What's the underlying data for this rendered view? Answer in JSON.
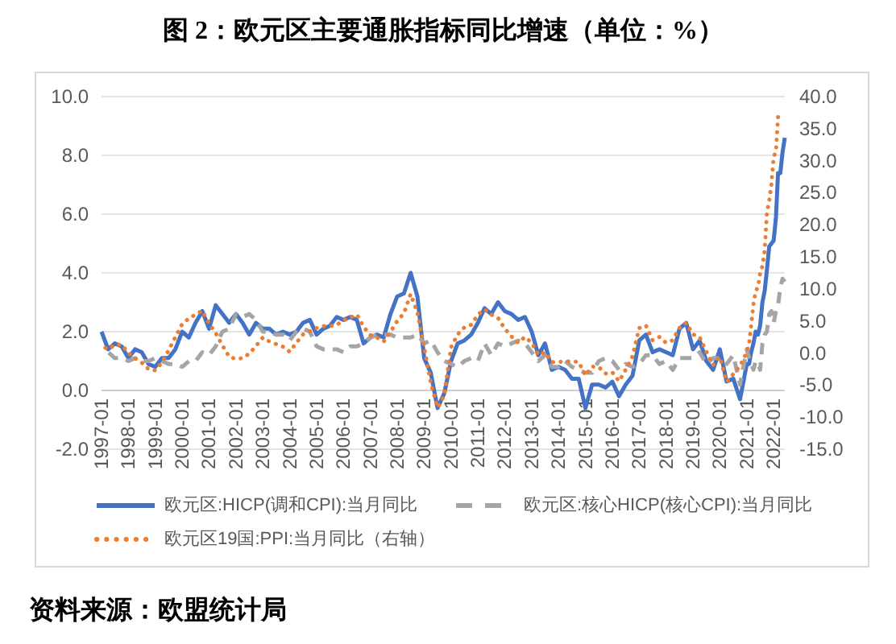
{
  "chart_data": {
    "type": "line",
    "title": "图 2：欧元区主要通胀指标同比增速（单位：%）",
    "annotations": [
      "资料来源：欧盟统计局"
    ],
    "xlim": [
      "1997-01",
      "2022-06"
    ],
    "xticks": [
      "1997-01",
      "1998-01",
      "1999-01",
      "2000-01",
      "2001-01",
      "2002-01",
      "2003-01",
      "2004-01",
      "2005-01",
      "2006-01",
      "2007-01",
      "2008-01",
      "2009-01",
      "2010-01",
      "2011-01",
      "2012-01",
      "2013-01",
      "2014-01",
      "2015-01",
      "2016-01",
      "2017-01",
      "2018-01",
      "2019-01",
      "2020-01",
      "2021-01",
      "2022-01"
    ],
    "ylim": [
      -2,
      10
    ],
    "yticks": [
      {
        "value": -2,
        "label": "-2.0"
      },
      {
        "value": 0,
        "label": "0.0"
      },
      {
        "value": 2,
        "label": "2.0"
      },
      {
        "value": 4,
        "label": "4.0"
      },
      {
        "value": 6,
        "label": "6.0"
      },
      {
        "value": 8,
        "label": "8.0"
      },
      {
        "value": 10,
        "label": "10.0"
      }
    ],
    "y2lim": [
      -15,
      40
    ],
    "y2ticks": [
      {
        "value": -15,
        "label": "-15.0"
      },
      {
        "value": -10,
        "label": "-10.0"
      },
      {
        "value": -5,
        "label": "-5.0"
      },
      {
        "value": 0,
        "label": "0.0"
      },
      {
        "value": 5,
        "label": "5.0"
      },
      {
        "value": 10,
        "label": "10.0"
      },
      {
        "value": 15,
        "label": "15.0"
      },
      {
        "value": 20,
        "label": "20.0"
      },
      {
        "value": 25,
        "label": "25.0"
      },
      {
        "value": 30,
        "label": "30.0"
      },
      {
        "value": 35,
        "label": "35.0"
      },
      {
        "value": 40,
        "label": "40.0"
      }
    ],
    "grid": "y",
    "legend": "bottom",
    "series": [
      {
        "name": "欧元区:HICP(调和CPI):当月同比",
        "color": "#4472c4",
        "line_style": "solid",
        "x": [
          "1997-01",
          "1997-04",
          "1997-07",
          "1997-10",
          "1998-01",
          "1998-04",
          "1998-07",
          "1998-10",
          "1999-01",
          "1999-04",
          "1999-07",
          "1999-10",
          "2000-01",
          "2000-04",
          "2000-07",
          "2000-10",
          "2001-01",
          "2001-04",
          "2001-07",
          "2001-10",
          "2002-01",
          "2002-04",
          "2002-07",
          "2002-10",
          "2003-01",
          "2003-04",
          "2003-07",
          "2003-10",
          "2004-01",
          "2004-04",
          "2004-07",
          "2004-10",
          "2005-01",
          "2005-04",
          "2005-07",
          "2005-10",
          "2006-01",
          "2006-04",
          "2006-07",
          "2006-10",
          "2007-01",
          "2007-04",
          "2007-07",
          "2007-10",
          "2008-01",
          "2008-04",
          "2008-07",
          "2008-10",
          "2009-01",
          "2009-04",
          "2009-07",
          "2009-10",
          "2010-01",
          "2010-04",
          "2010-07",
          "2010-10",
          "2011-01",
          "2011-04",
          "2011-07",
          "2011-10",
          "2012-01",
          "2012-04",
          "2012-07",
          "2012-10",
          "2013-01",
          "2013-04",
          "2013-07",
          "2013-10",
          "2014-01",
          "2014-04",
          "2014-07",
          "2014-10",
          "2015-01",
          "2015-04",
          "2015-07",
          "2015-10",
          "2016-01",
          "2016-04",
          "2016-07",
          "2016-10",
          "2017-01",
          "2017-04",
          "2017-07",
          "2017-10",
          "2018-01",
          "2018-04",
          "2018-07",
          "2018-10",
          "2019-01",
          "2019-04",
          "2019-07",
          "2019-10",
          "2020-01",
          "2020-04",
          "2020-07",
          "2020-10",
          "2021-01",
          "2021-02",
          "2021-03",
          "2021-04",
          "2021-05",
          "2021-06",
          "2021-07",
          "2021-08",
          "2021-09",
          "2021-10",
          "2021-11",
          "2021-12",
          "2022-01",
          "2022-02",
          "2022-03",
          "2022-04",
          "2022-05",
          "2022-06"
        ],
        "values": [
          2.0,
          1.4,
          1.6,
          1.5,
          1.1,
          1.4,
          1.3,
          0.9,
          0.8,
          1.1,
          1.1,
          1.4,
          2.0,
          1.8,
          2.3,
          2.7,
          2.1,
          2.9,
          2.6,
          2.3,
          2.6,
          2.3,
          1.9,
          2.3,
          2.1,
          2.1,
          1.9,
          2.0,
          1.9,
          2.0,
          2.3,
          2.4,
          1.9,
          2.1,
          2.2,
          2.5,
          2.4,
          2.5,
          2.4,
          1.6,
          1.8,
          1.9,
          1.8,
          2.6,
          3.2,
          3.3,
          4.0,
          3.2,
          1.1,
          0.6,
          -0.6,
          -0.1,
          1.0,
          1.6,
          1.7,
          1.9,
          2.3,
          2.8,
          2.6,
          3.0,
          2.7,
          2.6,
          2.4,
          2.5,
          2.0,
          1.2,
          1.6,
          0.7,
          0.8,
          0.7,
          0.4,
          0.4,
          -0.6,
          0.2,
          0.2,
          0.1,
          0.3,
          -0.2,
          0.2,
          0.5,
          1.7,
          1.9,
          1.3,
          1.4,
          1.3,
          1.2,
          2.1,
          2.3,
          1.4,
          1.7,
          1.0,
          0.7,
          1.4,
          0.3,
          0.4,
          -0.3,
          0.9,
          0.9,
          1.3,
          1.6,
          2.0,
          1.9,
          2.2,
          3.0,
          3.4,
          4.1,
          4.9,
          5.0,
          5.1,
          5.9,
          7.4,
          7.4,
          8.1,
          8.6
        ]
      },
      {
        "name": "欧元区:核心HICP(核心CPI):当月同比",
        "color": "#a5a5a5",
        "line_style": "dashed",
        "x": [
          "1997-01",
          "1997-04",
          "1997-07",
          "1997-10",
          "1998-01",
          "1998-04",
          "1998-07",
          "1998-10",
          "1999-01",
          "1999-04",
          "1999-07",
          "1999-10",
          "2000-01",
          "2000-04",
          "2000-07",
          "2000-10",
          "2001-01",
          "2001-04",
          "2001-07",
          "2001-10",
          "2002-01",
          "2002-04",
          "2002-07",
          "2002-10",
          "2003-01",
          "2003-04",
          "2003-07",
          "2003-10",
          "2004-01",
          "2004-04",
          "2004-07",
          "2004-10",
          "2005-01",
          "2005-04",
          "2005-07",
          "2005-10",
          "2006-01",
          "2006-04",
          "2006-07",
          "2006-10",
          "2007-01",
          "2007-04",
          "2007-07",
          "2007-10",
          "2008-01",
          "2008-04",
          "2008-07",
          "2008-10",
          "2009-01",
          "2009-04",
          "2009-07",
          "2009-10",
          "2010-01",
          "2010-04",
          "2010-07",
          "2010-10",
          "2011-01",
          "2011-04",
          "2011-07",
          "2011-10",
          "2012-01",
          "2012-04",
          "2012-07",
          "2012-10",
          "2013-01",
          "2013-04",
          "2013-07",
          "2013-10",
          "2014-01",
          "2014-04",
          "2014-07",
          "2014-10",
          "2015-01",
          "2015-04",
          "2015-07",
          "2015-10",
          "2016-01",
          "2016-04",
          "2016-07",
          "2016-10",
          "2017-01",
          "2017-04",
          "2017-07",
          "2017-10",
          "2018-01",
          "2018-04",
          "2018-07",
          "2018-10",
          "2019-01",
          "2019-04",
          "2019-07",
          "2019-10",
          "2020-01",
          "2020-04",
          "2020-07",
          "2020-10",
          "2021-01",
          "2021-02",
          "2021-03",
          "2021-04",
          "2021-05",
          "2021-06",
          "2021-07",
          "2021-08",
          "2021-09",
          "2021-10",
          "2021-11",
          "2021-12",
          "2022-01",
          "2022-02",
          "2022-03",
          "2022-04",
          "2022-05",
          "2022-06"
        ],
        "values": [
          1.4,
          1.3,
          1.1,
          1.1,
          1.0,
          1.1,
          1.0,
          1.0,
          1.1,
          1.0,
          0.9,
          0.9,
          0.8,
          1.0,
          1.0,
          1.3,
          1.2,
          1.5,
          2.0,
          2.1,
          2.6,
          2.5,
          2.6,
          2.4,
          2.0,
          2.0,
          1.9,
          1.9,
          1.7,
          2.0,
          2.1,
          2.0,
          1.5,
          1.4,
          1.4,
          1.4,
          1.3,
          1.5,
          1.5,
          1.6,
          1.8,
          1.9,
          1.9,
          1.9,
          1.8,
          1.8,
          1.8,
          1.9,
          1.6,
          1.7,
          1.3,
          1.0,
          0.9,
          0.8,
          1.0,
          1.1,
          1.0,
          1.6,
          1.2,
          1.6,
          1.5,
          1.6,
          1.7,
          1.6,
          1.3,
          1.0,
          1.2,
          0.8,
          0.8,
          1.0,
          0.8,
          0.7,
          0.6,
          0.6,
          1.0,
          1.1,
          1.0,
          0.7,
          0.9,
          0.8,
          0.9,
          1.2,
          1.2,
          0.9,
          1.0,
          0.7,
          1.1,
          1.1,
          1.1,
          1.3,
          0.9,
          1.1,
          1.1,
          0.9,
          1.2,
          0.2,
          1.4,
          1.1,
          0.9,
          0.7,
          1.0,
          0.9,
          0.7,
          1.6,
          1.9,
          2.0,
          2.6,
          2.7,
          2.3,
          2.7,
          2.9,
          3.5,
          3.8,
          3.7
        ]
      },
      {
        "name": "欧元区19国:PPI:当月同比（右轴）",
        "color": "#ed7d31",
        "line_style": "dotted",
        "axis": "y2",
        "x": [
          "1997-01",
          "1997-04",
          "1997-07",
          "1997-10",
          "1998-01",
          "1998-04",
          "1998-07",
          "1998-10",
          "1999-01",
          "1999-04",
          "1999-07",
          "1999-10",
          "2000-01",
          "2000-04",
          "2000-07",
          "2000-10",
          "2001-01",
          "2001-04",
          "2001-07",
          "2001-10",
          "2002-01",
          "2002-04",
          "2002-07",
          "2002-10",
          "2003-01",
          "2003-04",
          "2003-07",
          "2003-10",
          "2004-01",
          "2004-04",
          "2004-07",
          "2004-10",
          "2005-01",
          "2005-04",
          "2005-07",
          "2005-10",
          "2006-01",
          "2006-04",
          "2006-07",
          "2006-10",
          "2007-01",
          "2007-04",
          "2007-07",
          "2007-10",
          "2008-01",
          "2008-04",
          "2008-07",
          "2008-10",
          "2009-01",
          "2009-04",
          "2009-07",
          "2009-10",
          "2010-01",
          "2010-04",
          "2010-07",
          "2010-10",
          "2011-01",
          "2011-04",
          "2011-07",
          "2011-10",
          "2012-01",
          "2012-04",
          "2012-07",
          "2012-10",
          "2013-01",
          "2013-04",
          "2013-07",
          "2013-10",
          "2014-01",
          "2014-04",
          "2014-07",
          "2014-10",
          "2015-01",
          "2015-04",
          "2015-07",
          "2015-10",
          "2016-01",
          "2016-04",
          "2016-07",
          "2016-10",
          "2017-01",
          "2017-04",
          "2017-07",
          "2017-10",
          "2018-01",
          "2018-04",
          "2018-07",
          "2018-10",
          "2019-01",
          "2019-04",
          "2019-07",
          "2019-10",
          "2020-01",
          "2020-04",
          "2020-07",
          "2020-10",
          "2021-01",
          "2021-02",
          "2021-03",
          "2021-04",
          "2021-05",
          "2021-06",
          "2021-07",
          "2021-08",
          "2021-09",
          "2021-10",
          "2021-11",
          "2021-12",
          "2022-01",
          "2022-02",
          "2022-03",
          "2022-04",
          "2022-05"
        ],
        "values": [
          1.1,
          0.6,
          1.3,
          1.3,
          0.0,
          -0.8,
          -1.5,
          -2.5,
          -2.7,
          -1.5,
          0.4,
          2.5,
          4.5,
          5.4,
          6.0,
          6.6,
          4.6,
          3.1,
          1.2,
          -0.6,
          -0.9,
          -0.8,
          -0.1,
          1.1,
          2.4,
          1.8,
          1.4,
          1.0,
          0.2,
          1.6,
          2.9,
          3.4,
          3.9,
          4.2,
          4.2,
          4.4,
          5.1,
          5.5,
          6.0,
          4.1,
          2.8,
          2.4,
          1.8,
          3.3,
          5.0,
          6.2,
          9.2,
          6.3,
          0.9,
          -4.7,
          -8.5,
          -6.6,
          0.9,
          2.9,
          4.0,
          4.4,
          6.0,
          6.8,
          6.0,
          5.5,
          3.8,
          2.6,
          1.6,
          2.5,
          1.6,
          -0.3,
          0.1,
          -1.4,
          -1.4,
          -1.3,
          -1.3,
          -1.4,
          -3.5,
          -2.1,
          -2.2,
          -3.2,
          -3.0,
          -4.4,
          -2.6,
          -0.5,
          3.9,
          4.3,
          2.0,
          2.5,
          1.6,
          2.0,
          3.9,
          4.7,
          2.9,
          2.5,
          0.2,
          -1.9,
          -0.6,
          -4.5,
          -3.3,
          -2.0,
          0.1,
          1.5,
          4.3,
          7.6,
          9.6,
          10.3,
          12.4,
          13.6,
          16.0,
          21.9,
          23.7,
          26.3,
          30.6,
          31.5,
          36.8,
          36.8,
          36.3
        ]
      }
    ]
  }
}
